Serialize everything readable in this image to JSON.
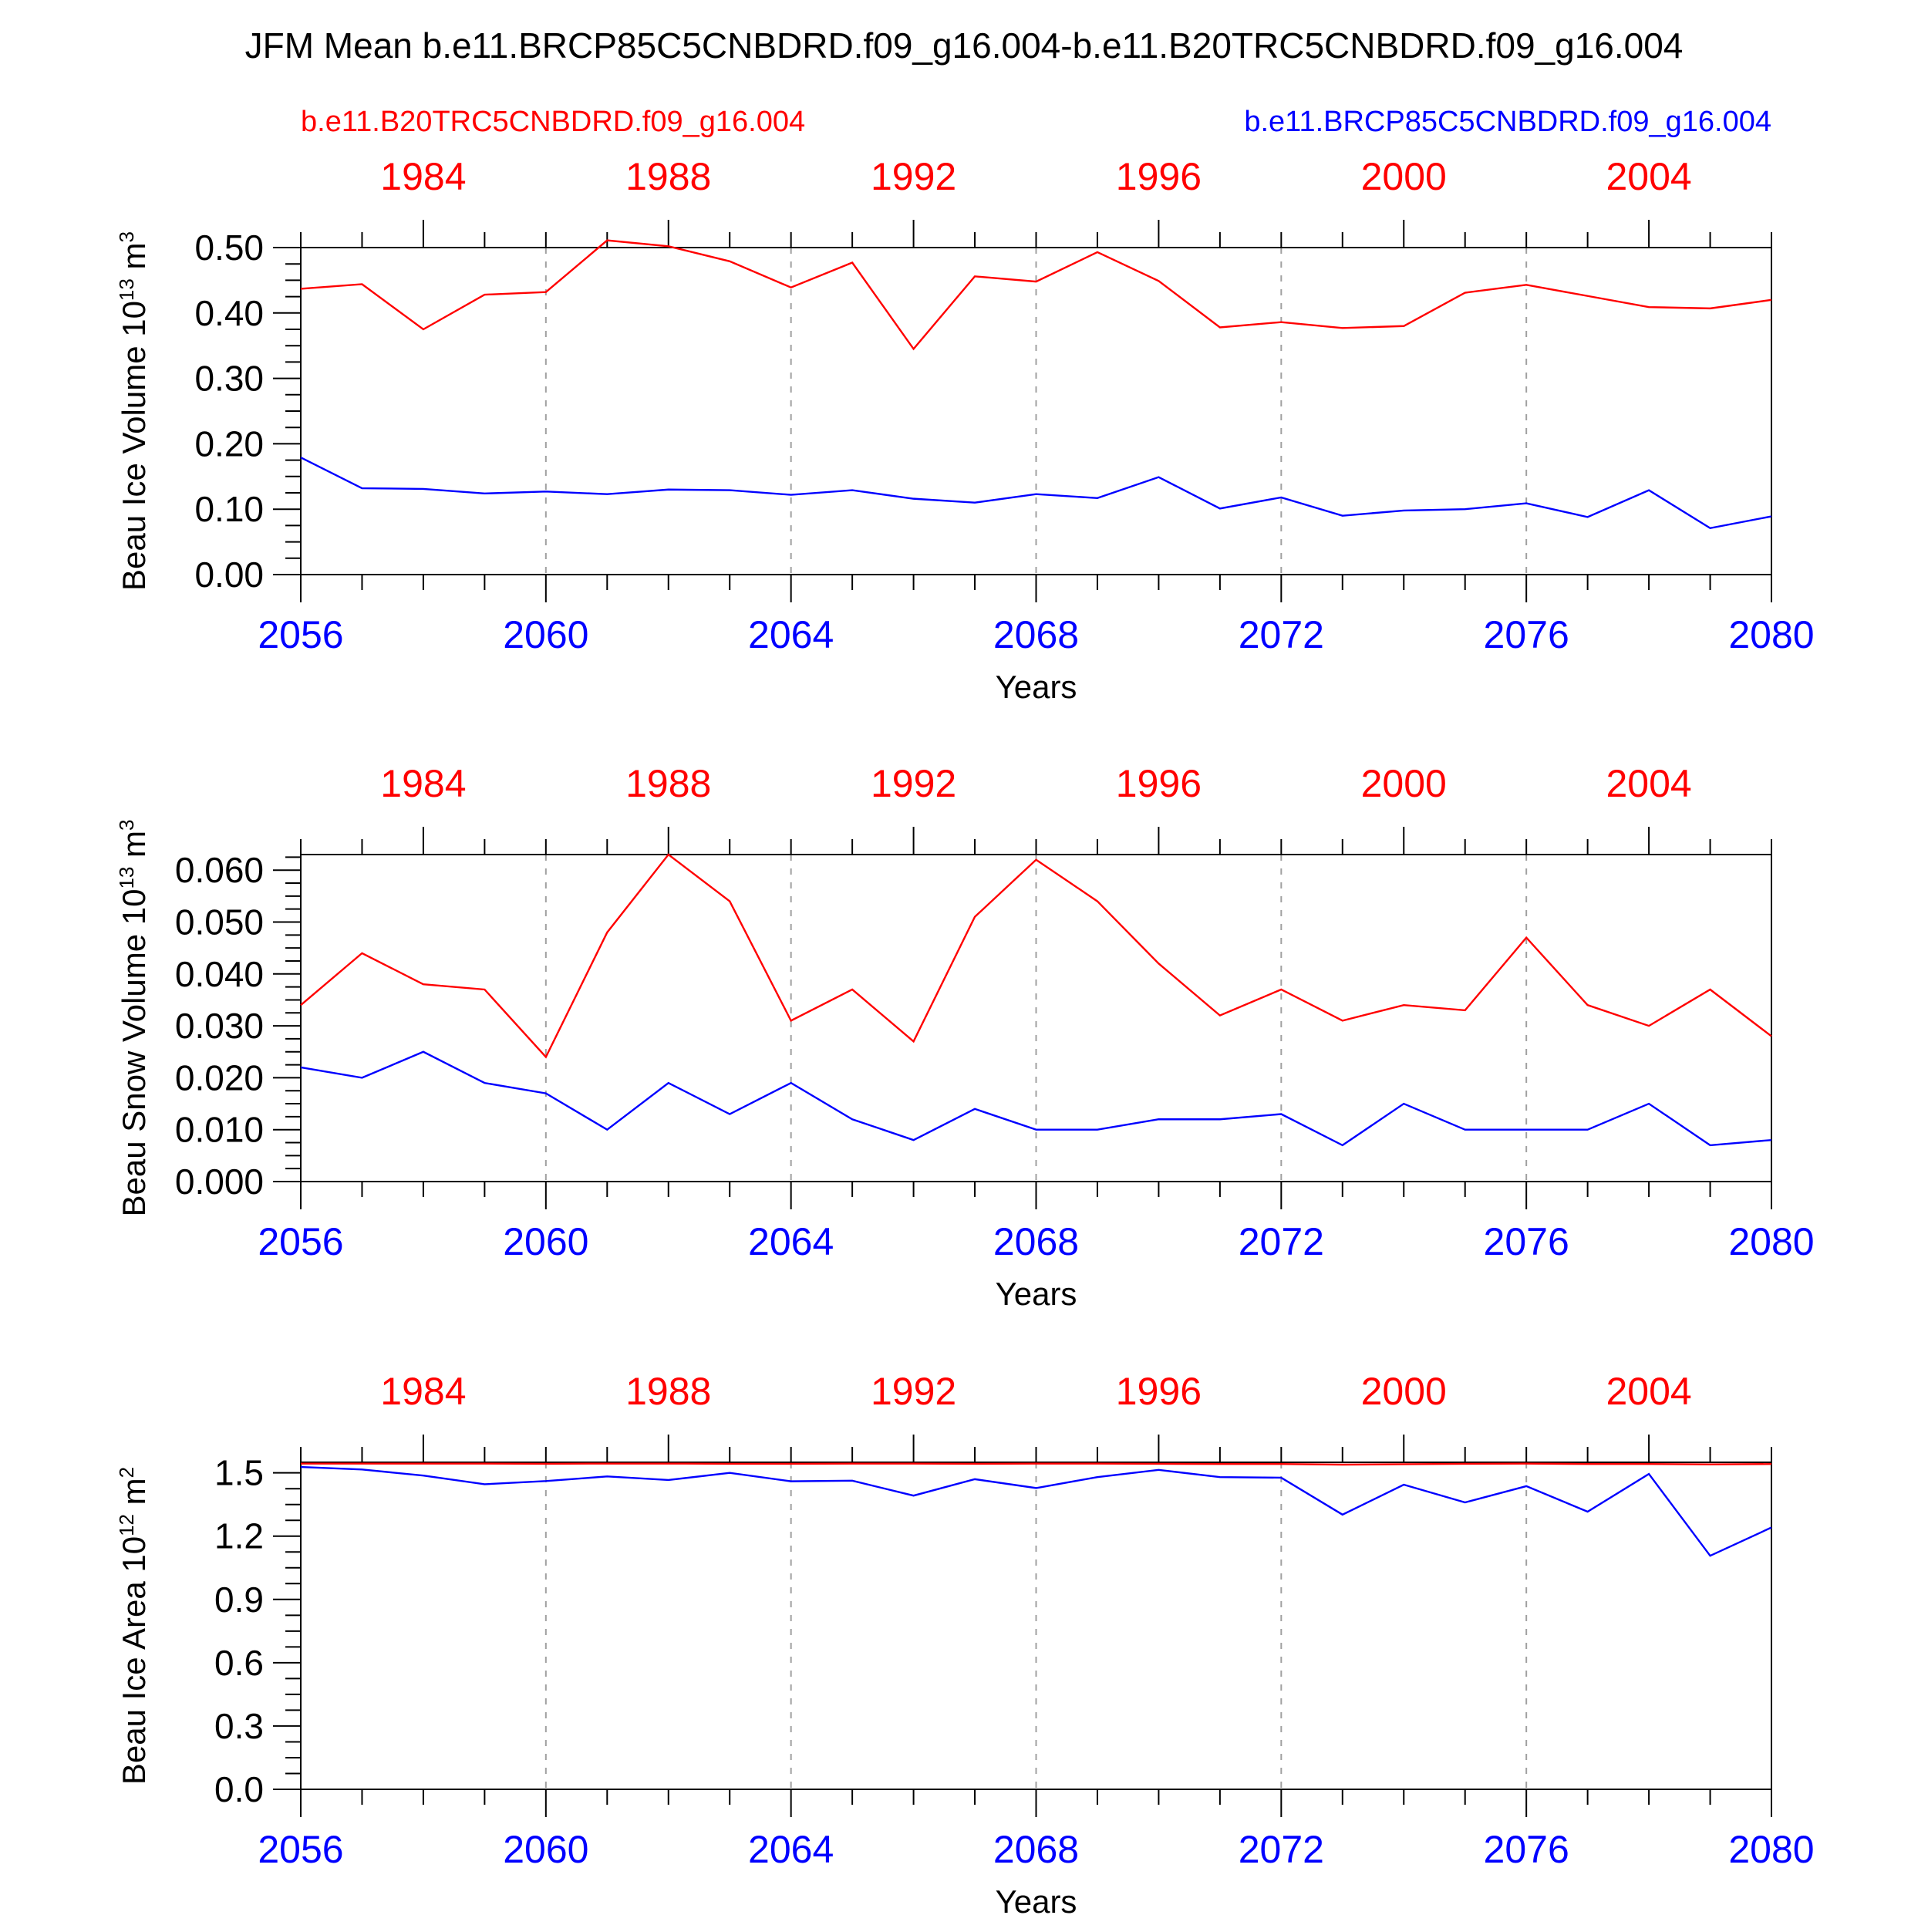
{
  "title": "JFM Mean b.e11.BRCP85C5CNBDRD.f09_g16.004-b.e11.B20TRC5CNBDRD.f09_g16.004",
  "legend": {
    "left": "b.e11.B20TRC5CNBDRD.f09_g16.004",
    "right": "b.e11.BRCP85C5CNBDRD.f09_g16.004"
  },
  "colors": {
    "historical": "#ff0000",
    "future": "#0000ff",
    "axis": "#000000",
    "grid": "#a0a0a0"
  },
  "chart_data": [
    {
      "type": "line",
      "ylabel": "Beau Ice Volume 10",
      "ylabel_exp": "13",
      "ylabel_unit": " m",
      "ylabel_unit_exp": "3",
      "xlabel": "Years",
      "xlim": [
        2056,
        2080
      ],
      "ylim": [
        0.0,
        0.5
      ],
      "yticks": [
        0.0,
        0.1,
        0.2,
        0.3,
        0.4,
        0.5
      ],
      "ytick_labels": [
        "0.00",
        "0.10",
        "0.20",
        "0.30",
        "0.40",
        "0.50"
      ],
      "yminor_step": 0.025,
      "xticks_bottom": [
        "2056",
        "2060",
        "2064",
        "2068",
        "2072",
        "2076",
        "2080"
      ],
      "xticks_top": [
        "1984",
        "1988",
        "1992",
        "1996",
        "2000",
        "2004"
      ],
      "x": [
        2056,
        2057,
        2058,
        2059,
        2060,
        2061,
        2062,
        2063,
        2064,
        2065,
        2066,
        2067,
        2068,
        2069,
        2070,
        2071,
        2072,
        2073,
        2074,
        2075,
        2076,
        2077,
        2078,
        2079,
        2080
      ],
      "series": [
        {
          "color": "red",
          "values": [
            0.437,
            0.444,
            0.375,
            0.428,
            0.432,
            0.511,
            0.502,
            0.479,
            0.439,
            0.477,
            0.345,
            0.456,
            0.448,
            0.493,
            0.449,
            0.378,
            0.386,
            0.377,
            0.38,
            0.431,
            0.443,
            0.426,
            0.409,
            0.407,
            0.42
          ]
        },
        {
          "color": "blue",
          "values": [
            0.179,
            0.132,
            0.131,
            0.124,
            0.127,
            0.123,
            0.13,
            0.129,
            0.122,
            0.129,
            0.116,
            0.11,
            0.123,
            0.117,
            0.149,
            0.101,
            0.118,
            0.09,
            0.098,
            0.1,
            0.109,
            0.088,
            0.129,
            0.071,
            0.089
          ]
        }
      ]
    },
    {
      "type": "line",
      "ylabel": "Beau Snow Volume 10",
      "ylabel_exp": "13",
      "ylabel_unit": " m",
      "ylabel_unit_exp": "3",
      "xlabel": "Years",
      "xlim": [
        2056,
        2080
      ],
      "ylim": [
        0.0,
        0.063
      ],
      "yticks": [
        0.0,
        0.01,
        0.02,
        0.03,
        0.04,
        0.05,
        0.06
      ],
      "ytick_labels": [
        "0.000",
        "0.010",
        "0.020",
        "0.030",
        "0.040",
        "0.050",
        "0.060"
      ],
      "yminor_step": 0.0025,
      "xticks_bottom": [
        "2056",
        "2060",
        "2064",
        "2068",
        "2072",
        "2076",
        "2080"
      ],
      "xticks_top": [
        "1984",
        "1988",
        "1992",
        "1996",
        "2000",
        "2004"
      ],
      "x": [
        2056,
        2057,
        2058,
        2059,
        2060,
        2061,
        2062,
        2063,
        2064,
        2065,
        2066,
        2067,
        2068,
        2069,
        2070,
        2071,
        2072,
        2073,
        2074,
        2075,
        2076,
        2077,
        2078,
        2079,
        2080
      ],
      "series": [
        {
          "color": "red",
          "values": [
            0.034,
            0.044,
            0.038,
            0.037,
            0.024,
            0.048,
            0.063,
            0.054,
            0.031,
            0.037,
            0.027,
            0.051,
            0.062,
            0.054,
            0.042,
            0.032,
            0.037,
            0.031,
            0.034,
            0.033,
            0.047,
            0.034,
            0.03,
            0.037,
            0.028
          ]
        },
        {
          "color": "blue",
          "values": [
            0.022,
            0.02,
            0.025,
            0.019,
            0.017,
            0.01,
            0.019,
            0.013,
            0.019,
            0.012,
            0.008,
            0.014,
            0.01,
            0.01,
            0.012,
            0.012,
            0.013,
            0.007,
            0.015,
            0.01,
            0.01,
            0.01,
            0.015,
            0.007,
            0.008
          ]
        }
      ]
    },
    {
      "type": "line",
      "ylabel": "Beau Ice Area 10",
      "ylabel_exp": "12",
      "ylabel_unit": " m",
      "ylabel_unit_exp": "2",
      "xlabel": "Years",
      "xlim": [
        2056,
        2080
      ],
      "ylim": [
        0.0,
        1.55
      ],
      "yticks": [
        0.0,
        0.3,
        0.6,
        0.9,
        1.2,
        1.5
      ],
      "ytick_labels": [
        "0.0",
        "0.3",
        "0.6",
        "0.9",
        "1.2",
        "1.5"
      ],
      "yminor_step": 0.075,
      "xticks_bottom": [
        "2056",
        "2060",
        "2064",
        "2068",
        "2072",
        "2076",
        "2080"
      ],
      "xticks_top": [
        "1984",
        "1988",
        "1992",
        "1996",
        "2000",
        "2004"
      ],
      "x": [
        2056,
        2057,
        2058,
        2059,
        2060,
        2061,
        2062,
        2063,
        2064,
        2065,
        2066,
        2067,
        2068,
        2069,
        2070,
        2071,
        2072,
        2073,
        2074,
        2075,
        2076,
        2077,
        2078,
        2079,
        2080
      ],
      "series": [
        {
          "color": "red",
          "values": [
            1.544,
            1.544,
            1.544,
            1.544,
            1.543,
            1.544,
            1.544,
            1.543,
            1.543,
            1.544,
            1.544,
            1.543,
            1.544,
            1.544,
            1.543,
            1.542,
            1.542,
            1.539,
            1.541,
            1.543,
            1.544,
            1.542,
            1.542,
            1.54,
            1.542
          ]
        },
        {
          "color": "blue",
          "values": [
            1.528,
            1.516,
            1.487,
            1.446,
            1.461,
            1.483,
            1.466,
            1.5,
            1.46,
            1.463,
            1.392,
            1.47,
            1.428,
            1.48,
            1.514,
            1.48,
            1.477,
            1.302,
            1.444,
            1.36,
            1.437,
            1.316,
            1.495,
            1.107,
            1.241
          ]
        }
      ]
    }
  ]
}
